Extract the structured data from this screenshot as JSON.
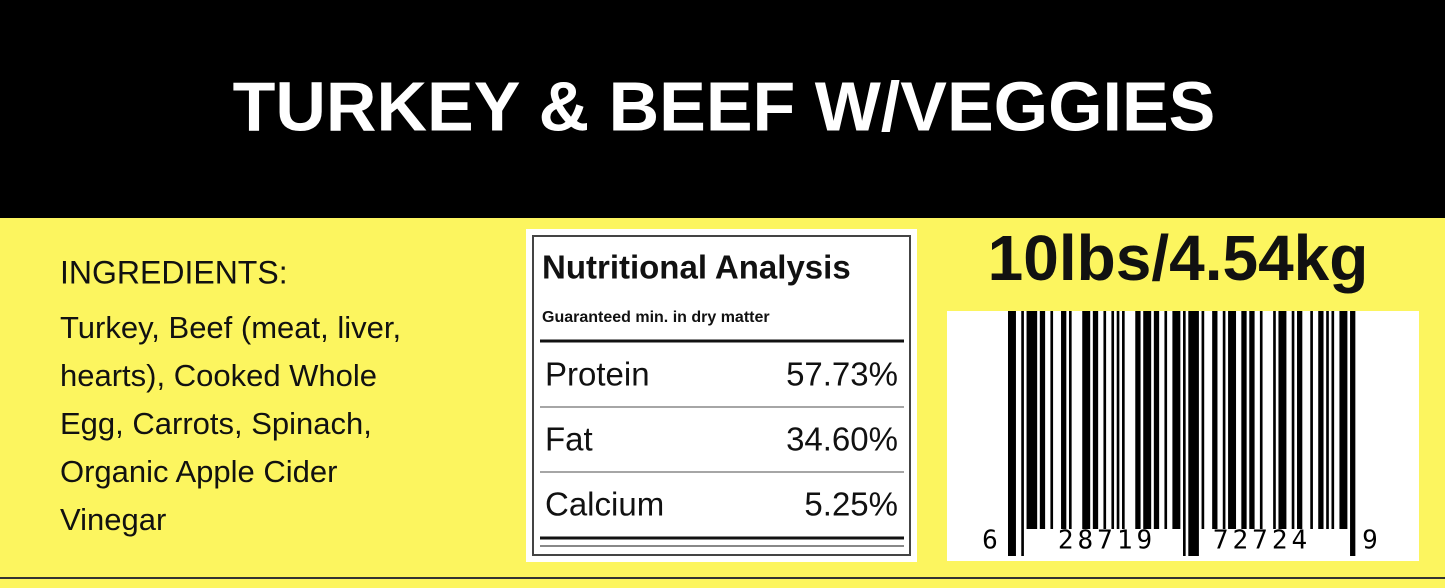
{
  "header": {
    "title": "TURKEY & BEEF W/VEGGIES"
  },
  "ingredients": {
    "heading": "INGREDIENTS:",
    "lines": [
      "Turkey, Beef (meat, liver,",
      "hearts), Cooked Whole",
      "Egg, Carrots, Spinach,",
      "Organic Apple Cider",
      "Vinegar"
    ]
  },
  "nutrition": {
    "title": "Nutritional Analysis",
    "subtitle": "Guaranteed min. in dry matter",
    "rows": [
      [
        "Protein",
        "57.73%"
      ],
      [
        "Fat",
        "34.60%"
      ],
      [
        "Calcium",
        "5.25%"
      ]
    ]
  },
  "weight": "10lbs/4.54kg",
  "barcode": {
    "digits": [
      "6",
      "28719",
      "72724",
      "9"
    ]
  }
}
